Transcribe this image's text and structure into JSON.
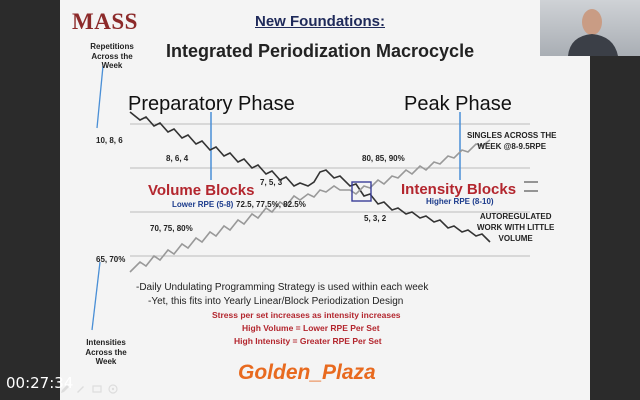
{
  "slide": {
    "logo": "MASS",
    "heading": "New Foundations:",
    "title": "Integrated Periodization Macrocycle",
    "phase_left": "Preparatory Phase",
    "phase_right": "Peak Phase",
    "volume_blocks": "Volume Blocks",
    "volume_rpe": "Lower RPE (5-8)",
    "intensity_blocks": "Intensity Blocks",
    "intensity_rpe": "Higher RPE (8-10)",
    "reps_label": [
      "Repetitions",
      "Across the",
      "Week"
    ],
    "intensities_label": [
      "Intensities",
      "Across the",
      "Week"
    ],
    "reps_values": {
      "r1": "10, 8, 6",
      "r2": "8, 6, 4",
      "r3": "7, 5, 3",
      "r4": "5, 3, 2"
    },
    "intensity_values": {
      "i1": "65, 70%",
      "i2": "70, 75, 80%",
      "i3": "72.5, 77.5%, 82.5%",
      "i4": "80, 85, 90%"
    },
    "singles_note": [
      "SINGLES ACROSS THE",
      "WEEK @8-9.5RPE"
    ],
    "autoreg_note": [
      "AUTOREGULATED",
      "WORK WITH LITTLE",
      "VOLUME"
    ],
    "notes": [
      "-Daily Undulating Programming Strategy is used within each week",
      "-Yet, this fits into Yearly Linear/Block Periodization Design"
    ],
    "red_notes": [
      "Stress per set increases as intensity increases",
      "High Volume = Lower RPE Per Set",
      "High Intensity = Greater RPE Per Set"
    ]
  },
  "overlay": {
    "watermark": "Golden_Plaza",
    "timer": "00:27:34"
  },
  "icons": [
    "pencil-icon",
    "pen-icon",
    "slides-icon",
    "more-icon"
  ],
  "colors": {
    "volume_red": "#b3262e",
    "rpe_blue": "#1b3b8c",
    "heading_navy": "#1f2a5a",
    "watermark_orange": "#e86a1f",
    "logo_maroon": "#8c2a2a"
  }
}
